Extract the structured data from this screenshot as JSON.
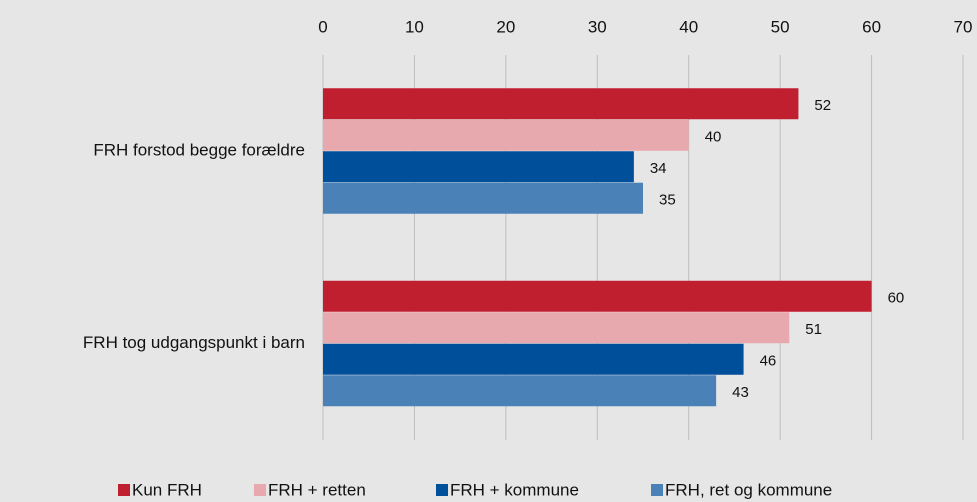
{
  "chart_data": {
    "type": "hbar",
    "categories": [
      "FRH forstod begge forældre",
      "FRH tog udgangspunkt i barn"
    ],
    "series": [
      {
        "name": "Kun FRH",
        "color": "#c01f30",
        "values": [
          52,
          60
        ]
      },
      {
        "name": "FRH + retten",
        "color": "#e8a9ae",
        "values": [
          40,
          51
        ]
      },
      {
        "name": "FRH + kommune",
        "color": "#004f9b",
        "values": [
          34,
          46
        ]
      },
      {
        "name": "FRH, ret og kommune",
        "color": "#4a82b7",
        "values": [
          35,
          43
        ]
      }
    ],
    "xlim": [
      0,
      70
    ],
    "xticks": [
      0,
      10,
      20,
      30,
      40,
      50,
      60,
      70
    ],
    "grid": true,
    "legend": "bottom"
  }
}
